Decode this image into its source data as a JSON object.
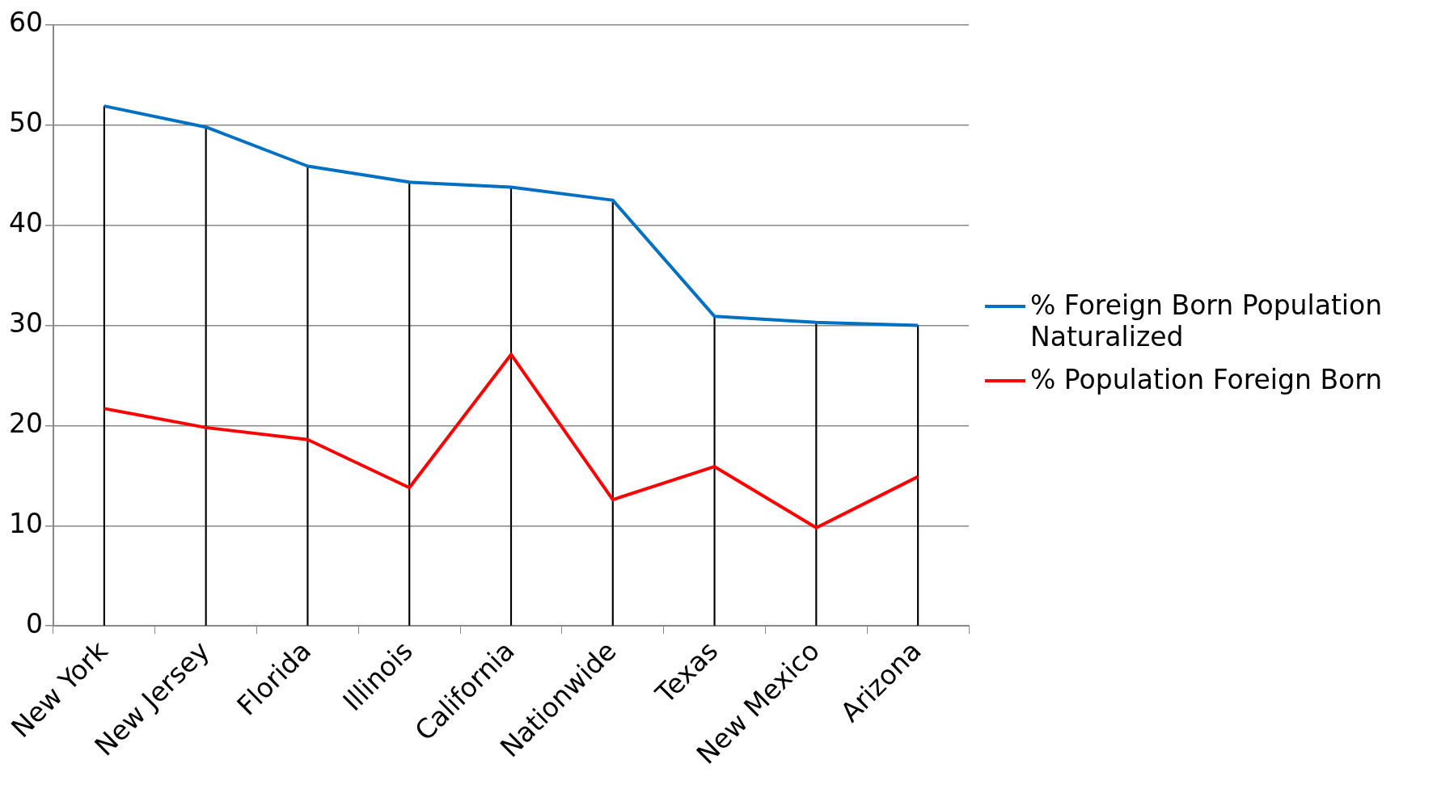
{
  "chart_data": {
    "type": "line",
    "categories": [
      "New York",
      "New Jersey",
      "Florida",
      "Illinois",
      "California",
      "Nationwide",
      "Texas",
      "New Mexico",
      "Arizona"
    ],
    "series": [
      {
        "name": "% Foreign Born Population Naturalized",
        "color": "#0070c0",
        "values": [
          51.9,
          49.8,
          45.9,
          44.3,
          43.8,
          42.5,
          30.9,
          30.3,
          30.0
        ]
      },
      {
        "name": "% Population Foreign Born",
        "color": "#ff0000",
        "values": [
          21.7,
          19.8,
          18.6,
          13.8,
          27.1,
          12.6,
          15.9,
          9.8,
          14.9
        ]
      },
      {
        "type": "bar",
        "color": "#000000",
        "values": [
          51.9,
          49.8,
          45.9,
          44.3,
          43.8,
          42.5,
          30.9,
          30.3,
          30.0
        ]
      }
    ],
    "ylim": [
      0,
      60
    ],
    "yticks": [
      0,
      10,
      20,
      30,
      40,
      50,
      60
    ],
    "grid": "y",
    "legend": "right",
    "marker": "none",
    "line_style": "solid"
  }
}
